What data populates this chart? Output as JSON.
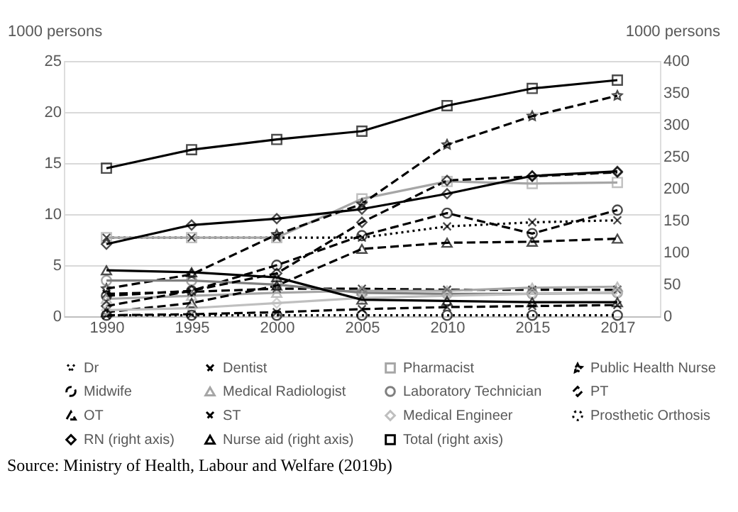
{
  "chart_data": {
    "type": "line",
    "categories": [
      "1990",
      "1995",
      "2000",
      "2005",
      "2010",
      "2015",
      "2017"
    ],
    "ylabel": "1000 persons",
    "y2label": "1000 persons",
    "ylim": [
      0,
      25
    ],
    "yticks": [
      0,
      5,
      10,
      15,
      20,
      25
    ],
    "y2lim": [
      0,
      400
    ],
    "y2ticks": [
      0,
      50,
      100,
      150,
      200,
      250,
      300,
      350,
      400
    ],
    "grid": "y",
    "legend": "bottom",
    "annotations": [
      "Source: Ministry of Health, Labour and Welfare (2019b)"
    ],
    "series": [
      {
        "name": "Dr",
        "color": "#000000",
        "line_style": "dotted",
        "marker": "cross",
        "values": [
          7.7,
          7.7,
          7.7,
          7.7,
          8.8,
          9.2,
          9.4
        ]
      },
      {
        "name": "Dentist",
        "color": "#000000",
        "line_style": "dashed",
        "marker": "cross",
        "values": [
          2.2,
          2.4,
          2.7,
          2.7,
          2.6,
          2.6,
          2.6
        ]
      },
      {
        "name": "Pharmacist",
        "color": "#a6a6a6",
        "line_style": "solid",
        "marker": "square",
        "values": [
          7.7,
          7.7,
          7.7,
          11.5,
          13.2,
          13.0,
          13.1
        ]
      },
      {
        "name": "Public Health Nurse",
        "color": "#000000",
        "line_style": "dashed",
        "marker": "star",
        "values": [
          2.7,
          4.1,
          8.0,
          11.0,
          16.8,
          19.6,
          21.6
        ]
      },
      {
        "name": "Midwife",
        "color": "#000000",
        "line_style": "dashed",
        "marker": "circle",
        "values": [
          2.0,
          2.5,
          5.0,
          7.9,
          10.1,
          8.1,
          10.4
        ]
      },
      {
        "name": "Medical Radiologist",
        "color": "#a6a6a6",
        "line_style": "solid",
        "marker": "triangle",
        "values": [
          1.7,
          2.0,
          2.3,
          2.5,
          2.5,
          2.8,
          2.9
        ]
      },
      {
        "name": "Laboratory Technician",
        "color": "#7f7f7f",
        "line_style": "solid",
        "marker": "circle",
        "values": [
          3.5,
          3.5,
          3.1,
          2.3,
          2.2,
          2.2,
          2.3
        ]
      },
      {
        "name": "PT",
        "color": "#000000",
        "line_style": "dashed",
        "marker": "diamond",
        "values": [
          1.0,
          2.5,
          4.2,
          9.2,
          13.3,
          13.7,
          14.1
        ]
      },
      {
        "name": "OT",
        "color": "#000000",
        "line_style": "dashed",
        "marker": "triangle",
        "values": [
          0.4,
          1.3,
          3.0,
          6.6,
          7.2,
          7.3,
          7.6
        ]
      },
      {
        "name": "ST",
        "color": "#000000",
        "line_style": "dashed",
        "marker": "cross",
        "values": [
          0.1,
          0.2,
          0.4,
          0.7,
          0.9,
          1.0,
          1.1
        ]
      },
      {
        "name": "Medical Engineer",
        "color": "#bfbfbf",
        "line_style": "solid",
        "marker": "diamond",
        "values": [
          0.6,
          0.8,
          1.3,
          1.8,
          2.0,
          2.2,
          2.3
        ]
      },
      {
        "name": "Prosthetic Orthosis",
        "color": "#000000",
        "line_style": "dotted",
        "marker": "circle",
        "values": [
          0.1,
          0.1,
          0.1,
          0.1,
          0.1,
          0.1,
          0.1
        ]
      },
      {
        "name": "RN (right axis)",
        "color": "#000000",
        "line_style": "solid",
        "marker": "diamond",
        "axis": "y2",
        "values": [
          113,
          143,
          153,
          168,
          192,
          220,
          227
        ]
      },
      {
        "name": "Nurse aid (right axis)",
        "color": "#000000",
        "line_style": "solid",
        "marker": "triangle",
        "axis": "y2",
        "values": [
          72,
          69,
          61,
          26,
          24,
          22,
          22
        ]
      },
      {
        "name": "Total (right axis)",
        "color": "#000000",
        "line_style": "solid",
        "marker": "square",
        "axis": "y2",
        "values": [
          232,
          261,
          277,
          290,
          330,
          357,
          370
        ]
      }
    ]
  }
}
